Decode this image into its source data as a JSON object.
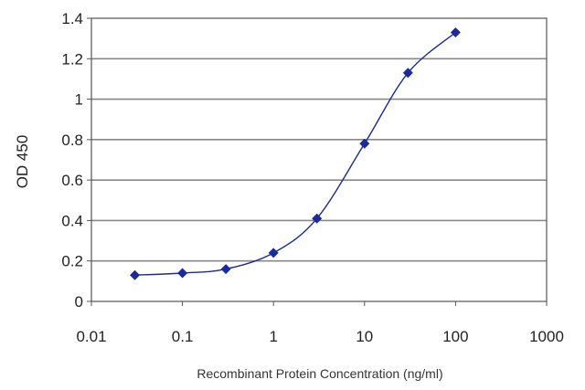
{
  "chart_data": {
    "type": "scatter",
    "title": "",
    "xlabel": "Recombinant Protein Concentration (ng/ml)",
    "ylabel": "OD 450",
    "xscale": "log",
    "xlim": [
      0.01,
      1000
    ],
    "ylim": [
      0,
      1.4
    ],
    "x_ticks": [
      0.01,
      0.1,
      1,
      10,
      100,
      1000
    ],
    "x_tick_labels": [
      "0.01",
      "0.1",
      "1",
      "10",
      "100",
      "1000"
    ],
    "y_ticks": [
      0,
      0.2,
      0.4,
      0.6,
      0.8,
      1,
      1.2,
      1.4
    ],
    "y_tick_labels": [
      "0",
      "0.2",
      "0.4",
      "0.6",
      "0.8",
      "1",
      "1.2",
      "1.4"
    ],
    "grid": "horizontal",
    "fit_curve": "smooth line through points",
    "series": [
      {
        "x": [
          0.03,
          0.1,
          0.3,
          1,
          3,
          10,
          30,
          100
        ],
        "y": [
          0.13,
          0.14,
          0.16,
          0.24,
          0.41,
          0.78,
          1.13,
          1.33
        ]
      }
    ],
    "colors": {
      "series": "#1a2a9a",
      "grid": "#888888",
      "axis": "#555555"
    }
  }
}
